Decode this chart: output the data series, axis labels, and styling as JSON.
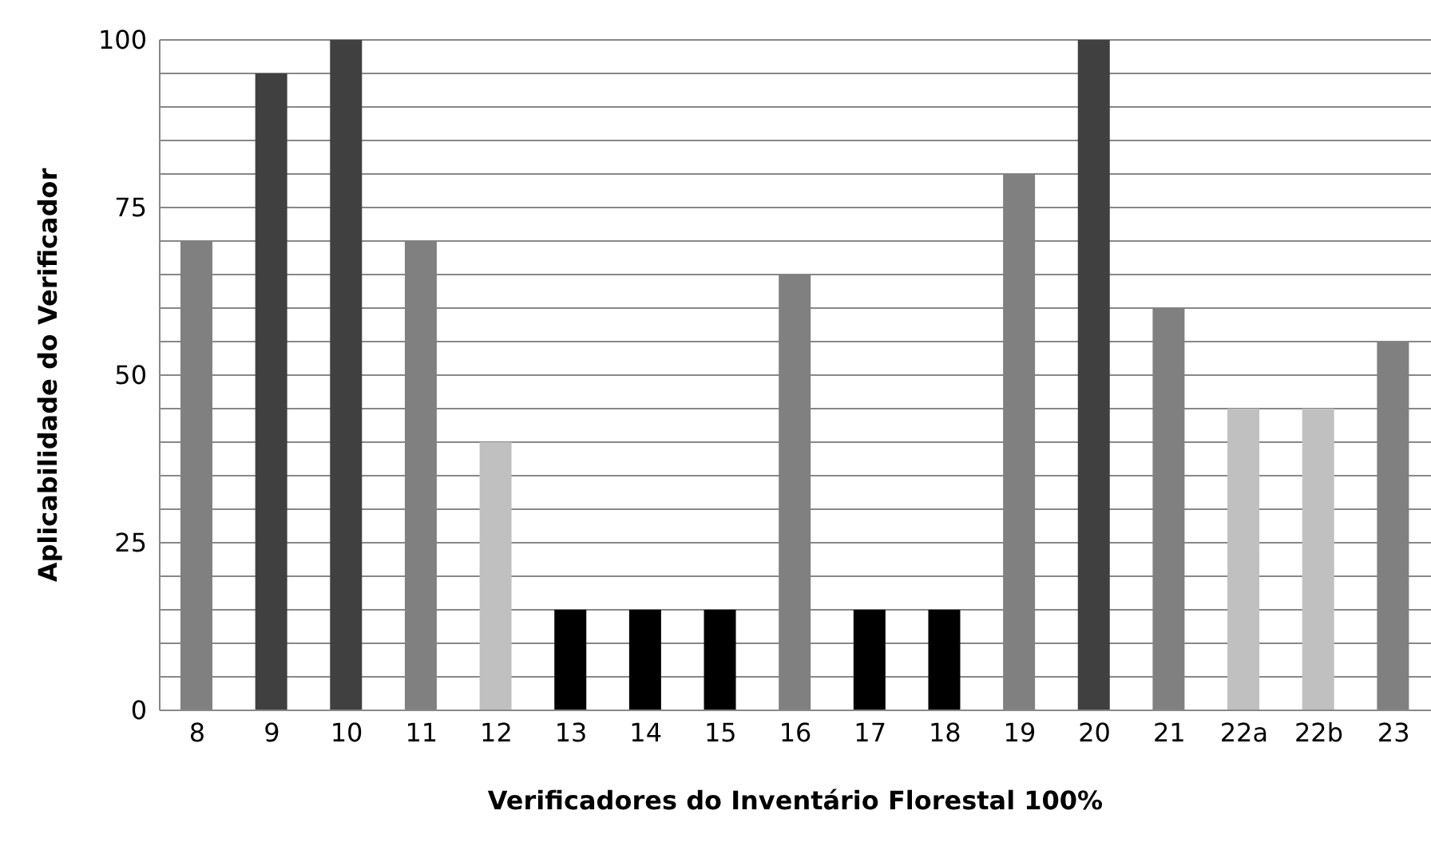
{
  "chart_data": {
    "type": "bar",
    "xlabel": "Verificadores do Inventário Florestal 100%",
    "ylabel": "Aplicabilidade do Verificador",
    "categories": [
      "8",
      "9",
      "10",
      "11",
      "12",
      "13",
      "14",
      "15",
      "16",
      "17",
      "18",
      "19",
      "20",
      "21",
      "22a",
      "22b",
      "23"
    ],
    "values": [
      70,
      95,
      100,
      70,
      40,
      15,
      15,
      15,
      65,
      15,
      15,
      80,
      100,
      60,
      45,
      45,
      55
    ],
    "colors": [
      "#808080",
      "#404040",
      "#404040",
      "#808080",
      "#c0c0c0",
      "#000000",
      "#000000",
      "#000000",
      "#808080",
      "#000000",
      "#000000",
      "#808080",
      "#404040",
      "#808080",
      "#c0c0c0",
      "#c0c0c0",
      "#808080"
    ],
    "ylim": [
      0,
      100
    ],
    "yticks": [
      0,
      {
        "value": 5,
        "label": null
      },
      {
        "value": 10,
        "label": null
      },
      {
        "value": 15,
        "label": null
      },
      {
        "value": 20,
        "label": null
      },
      25,
      {
        "value": 30,
        "label": null
      },
      {
        "value": 35,
        "label": null
      },
      {
        "value": 40,
        "label": null
      },
      {
        "value": 45,
        "label": null
      },
      50,
      {
        "value": 55,
        "label": null
      },
      {
        "value": 60,
        "label": null
      },
      {
        "value": 65,
        "label": null
      },
      {
        "value": 70,
        "label": null
      },
      75,
      {
        "value": 80,
        "label": null
      },
      {
        "value": 85,
        "label": null
      },
      {
        "value": 90,
        "label": null
      },
      {
        "value": 95,
        "label": null
      },
      100
    ],
    "grid": "y"
  }
}
